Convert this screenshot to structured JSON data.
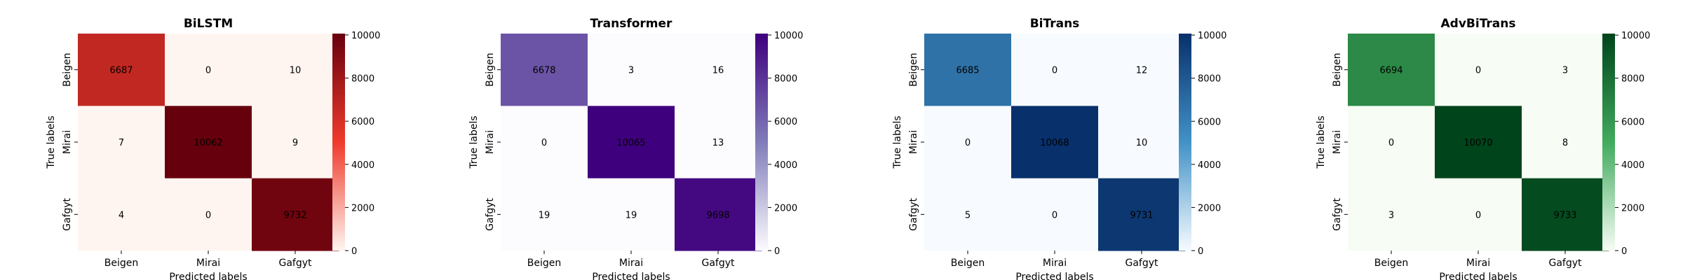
{
  "chart_data": [
    {
      "type": "heatmap",
      "title": "BiLSTM",
      "xlabel": "Predicted labels",
      "ylabel": "True labels",
      "x_categories": [
        "Beigen",
        "Mirai",
        "Gafgyt"
      ],
      "y_categories": [
        "Beigen",
        "Mirai",
        "Gafgyt"
      ],
      "values": [
        [
          6687,
          0,
          10
        ],
        [
          7,
          10062,
          9
        ],
        [
          4,
          0,
          9732
        ]
      ],
      "colorbar": {
        "range": [
          0,
          10062
        ],
        "ticks": [
          "0",
          "2000",
          "4000",
          "6000",
          "8000",
          "10000"
        ]
      },
      "colormap": {
        "low": "#fff5f0",
        "mid": "#ef3b2c",
        "high": "#67000d"
      }
    },
    {
      "type": "heatmap",
      "title": "Transformer",
      "xlabel": "Predicted labels",
      "ylabel": "True labels",
      "x_categories": [
        "Beigen",
        "Mirai",
        "Gafgyt"
      ],
      "y_categories": [
        "Beigen",
        "Mirai",
        "Gafgyt"
      ],
      "values": [
        [
          6678,
          3,
          16
        ],
        [
          0,
          10065,
          13
        ],
        [
          19,
          19,
          9698
        ]
      ],
      "colorbar": {
        "range": [
          0,
          10065
        ],
        "ticks": [
          "0",
          "2000",
          "4000",
          "6000",
          "8000",
          "10000"
        ]
      },
      "colormap": {
        "low": "#fcfbfd",
        "mid": "#807dba",
        "high": "#3f007d"
      }
    },
    {
      "type": "heatmap",
      "title": "BiTrans",
      "xlabel": "Predicted labels",
      "ylabel": "True labels",
      "x_categories": [
        "Beigen",
        "Mirai",
        "Gafgyt"
      ],
      "y_categories": [
        "Beigen",
        "Mirai",
        "Gafgyt"
      ],
      "values": [
        [
          6685,
          0,
          12
        ],
        [
          0,
          10068,
          10
        ],
        [
          5,
          0,
          9731
        ]
      ],
      "colorbar": {
        "range": [
          0,
          10068
        ],
        "ticks": [
          "0",
          "2000",
          "4000",
          "6000",
          "8000",
          "10000"
        ]
      },
      "colormap": {
        "low": "#f7fbff",
        "mid": "#4292c6",
        "high": "#08306b"
      }
    },
    {
      "type": "heatmap",
      "title": "AdvBiTrans",
      "xlabel": "Predicted labels",
      "ylabel": "True labels",
      "x_categories": [
        "Beigen",
        "Mirai",
        "Gafgyt"
      ],
      "y_categories": [
        "Beigen",
        "Mirai",
        "Gafgyt"
      ],
      "values": [
        [
          6694,
          0,
          3
        ],
        [
          0,
          10070,
          8
        ],
        [
          3,
          0,
          9733
        ]
      ],
      "colorbar": {
        "range": [
          0,
          10070
        ],
        "ticks": [
          "0",
          "2000",
          "4000",
          "6000",
          "8000",
          "10000"
        ]
      },
      "colormap": {
        "low": "#f7fcf5",
        "mid": "#41ab5d",
        "high": "#00441b"
      }
    }
  ]
}
